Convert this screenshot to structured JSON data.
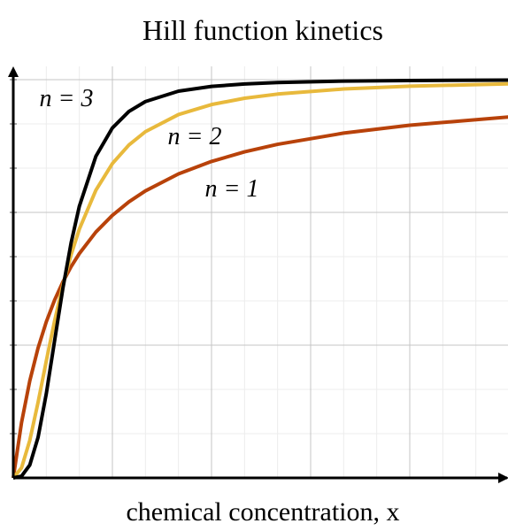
{
  "chart_data": {
    "type": "line",
    "title": "Hill function kinetics",
    "xlabel": "chemical concentration, x",
    "x": [
      0,
      0.25,
      0.5,
      0.75,
      1,
      1.25,
      1.5,
      1.75,
      2,
      2.5,
      3,
      3.5,
      4,
      5,
      6,
      7,
      8,
      10,
      12,
      15
    ],
    "series": [
      {
        "name": "n = 1",
        "color": "#b8420a",
        "values": [
          0,
          1.25,
          2.195,
          2.935,
          3.529,
          4.018,
          4.426,
          4.773,
          5.07,
          5.556,
          5.934,
          6.238,
          6.486,
          6.87,
          7.152,
          7.368,
          7.539,
          7.792,
          7.97,
          8.157
        ]
      },
      {
        "name": "n = 2",
        "color": "#e8b93c",
        "values": [
          0,
          0.228,
          0.848,
          1.707,
          2.645,
          3.547,
          4.352,
          5.043,
          5.623,
          6.501,
          7.104,
          7.524,
          7.825,
          8.211,
          8.437,
          8.58,
          8.674,
          8.789,
          8.852,
          8.905
        ]
      },
      {
        "name": "n = 3",
        "color": "#000000",
        "values": [
          0,
          0.038,
          0.292,
          0.916,
          1.905,
          3.096,
          4.279,
          5.31,
          6.141,
          7.268,
          7.909,
          8.281,
          8.505,
          8.74,
          8.847,
          8.903,
          8.935,
          8.967,
          8.98,
          8.99
        ]
      }
    ],
    "xlim": [
      0,
      15
    ],
    "ylim": [
      0,
      9.3
    ],
    "xticks": [
      3,
      6,
      9,
      12
    ],
    "xticks_minor": [
      1,
      2,
      4,
      5,
      7,
      8,
      10,
      11,
      13,
      14
    ],
    "yticks": [
      3,
      6,
      9
    ],
    "yticks_minor": [
      1,
      2,
      4,
      5,
      7,
      8
    ],
    "grid": true
  }
}
